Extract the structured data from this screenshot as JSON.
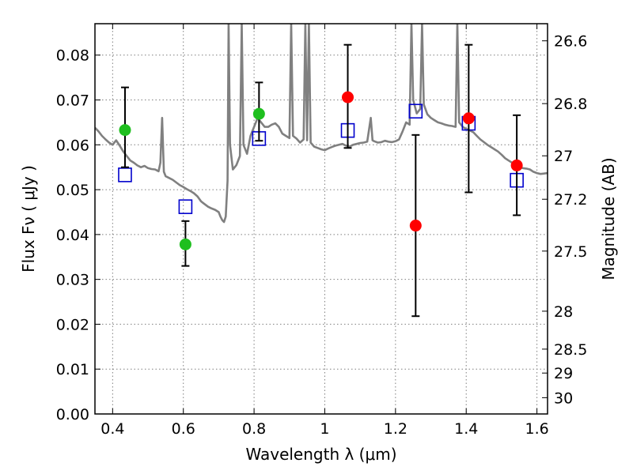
{
  "chart_data": {
    "type": "scatter",
    "xlabel": "Wavelength  λ (μm)",
    "ylabel": "Flux  Fν  ( μJy )",
    "y2label": "Magnitude (AB)",
    "xlim": [
      0.35,
      1.63
    ],
    "ylim": [
      0.0,
      0.087
    ],
    "grid": true,
    "x_ticks": [
      0.4,
      0.6,
      0.8,
      1.0,
      1.2,
      1.4,
      1.6
    ],
    "x_tick_labels": [
      "0.4",
      "0.6",
      "0.8",
      "1",
      "1.2",
      "1.4",
      "1.6"
    ],
    "y_ticks": [
      0.0,
      0.01,
      0.02,
      0.03,
      0.04,
      0.05,
      0.06,
      0.07,
      0.08
    ],
    "y_tick_labels": [
      "0.00",
      "0.01",
      "0.02",
      "0.03",
      "0.04",
      "0.05",
      "0.06",
      "0.07",
      "0.08"
    ],
    "y2_ticks": [
      {
        "label": "26.6",
        "mag": 26.6
      },
      {
        "label": "26.8",
        "mag": 26.8
      },
      {
        "label": "27",
        "mag": 27.0
      },
      {
        "label": "27.2",
        "mag": 27.2
      },
      {
        "label": "27.5",
        "mag": 27.5
      },
      {
        "label": "28",
        "mag": 28.0
      },
      {
        "label": "28.5",
        "mag": 28.5
      },
      {
        "label": "29",
        "mag": 29.0
      },
      {
        "label": "30",
        "mag": 30.0
      }
    ],
    "colors": {
      "green": "#1fbf1f",
      "red": "#ff0000",
      "model": "#808080",
      "open_square": "#0000cc",
      "errorbar": "#000000",
      "grid": "#7f7f7f"
    },
    "series": [
      {
        "marker": "filled-circle",
        "color": "#1fbf1f",
        "points": [
          {
            "x": 0.435,
            "y": 0.0633,
            "yerr_low": 0.055,
            "yerr_high": 0.0728
          },
          {
            "x": 0.606,
            "y": 0.0378,
            "yerr_low": 0.033,
            "yerr_high": 0.043
          },
          {
            "x": 0.814,
            "y": 0.0669,
            "yerr_low": 0.0609,
            "yerr_high": 0.0739
          }
        ]
      },
      {
        "marker": "filled-circle",
        "color": "#ff0000",
        "points": [
          {
            "x": 1.065,
            "y": 0.0706,
            "yerr_low": 0.0593,
            "yerr_high": 0.0823
          },
          {
            "x": 1.257,
            "y": 0.042,
            "yerr_low": 0.0218,
            "yerr_high": 0.0622
          },
          {
            "x": 1.407,
            "y": 0.0659,
            "yerr_low": 0.0494,
            "yerr_high": 0.0823
          },
          {
            "x": 1.543,
            "y": 0.0554,
            "yerr_low": 0.0443,
            "yerr_high": 0.0666
          }
        ]
      },
      {
        "marker": "open-square",
        "color": "#0000cc",
        "points": [
          {
            "x": 0.435,
            "y": 0.0533
          },
          {
            "x": 0.606,
            "y": 0.0462
          },
          {
            "x": 0.814,
            "y": 0.0614
          },
          {
            "x": 1.065,
            "y": 0.0632
          },
          {
            "x": 1.257,
            "y": 0.0675
          },
          {
            "x": 1.407,
            "y": 0.0648
          },
          {
            "x": 1.543,
            "y": 0.0521
          }
        ]
      },
      {
        "marker": "line",
        "color": "#808080",
        "points": [
          [
            0.35,
            0.0638
          ],
          [
            0.36,
            0.063
          ],
          [
            0.37,
            0.062
          ],
          [
            0.38,
            0.0612
          ],
          [
            0.39,
            0.0605
          ],
          [
            0.4,
            0.06
          ],
          [
            0.41,
            0.061
          ],
          [
            0.42,
            0.0598
          ],
          [
            0.43,
            0.0585
          ],
          [
            0.44,
            0.0575
          ],
          [
            0.45,
            0.0565
          ],
          [
            0.46,
            0.056
          ],
          [
            0.47,
            0.0554
          ],
          [
            0.48,
            0.055
          ],
          [
            0.49,
            0.0553
          ],
          [
            0.5,
            0.0548
          ],
          [
            0.51,
            0.0546
          ],
          [
            0.52,
            0.0545
          ],
          [
            0.53,
            0.0541
          ],
          [
            0.535,
            0.056
          ],
          [
            0.54,
            0.066
          ],
          [
            0.545,
            0.054
          ],
          [
            0.55,
            0.053
          ],
          [
            0.56,
            0.0526
          ],
          [
            0.57,
            0.0522
          ],
          [
            0.58,
            0.0516
          ],
          [
            0.59,
            0.051
          ],
          [
            0.6,
            0.0506
          ],
          [
            0.61,
            0.0501
          ],
          [
            0.62,
            0.0497
          ],
          [
            0.63,
            0.0492
          ],
          [
            0.64,
            0.0485
          ],
          [
            0.65,
            0.0474
          ],
          [
            0.66,
            0.0468
          ],
          [
            0.67,
            0.0462
          ],
          [
            0.68,
            0.0458
          ],
          [
            0.69,
            0.0455
          ],
          [
            0.7,
            0.045
          ],
          [
            0.705,
            0.044
          ],
          [
            0.71,
            0.0432
          ],
          [
            0.715,
            0.0428
          ],
          [
            0.72,
            0.044
          ],
          [
            0.725,
            0.052
          ],
          [
            0.728,
            0.087
          ],
          [
            0.732,
            0.06
          ],
          [
            0.74,
            0.0545
          ],
          [
            0.75,
            0.0555
          ],
          [
            0.76,
            0.0575
          ],
          [
            0.765,
            0.087
          ],
          [
            0.77,
            0.06
          ],
          [
            0.78,
            0.058
          ],
          [
            0.79,
            0.062
          ],
          [
            0.8,
            0.064
          ],
          [
            0.81,
            0.066
          ],
          [
            0.82,
            0.065
          ],
          [
            0.83,
            0.064
          ],
          [
            0.84,
            0.064
          ],
          [
            0.85,
            0.0645
          ],
          [
            0.86,
            0.0648
          ],
          [
            0.87,
            0.064
          ],
          [
            0.88,
            0.0625
          ],
          [
            0.89,
            0.062
          ],
          [
            0.9,
            0.0615
          ],
          [
            0.905,
            0.087
          ],
          [
            0.91,
            0.062
          ],
          [
            0.92,
            0.0614
          ],
          [
            0.93,
            0.0605
          ],
          [
            0.94,
            0.0612
          ],
          [
            0.945,
            0.087
          ],
          [
            0.95,
            0.061
          ],
          [
            0.955,
            0.087
          ],
          [
            0.96,
            0.0605
          ],
          [
            0.97,
            0.0596
          ],
          [
            0.98,
            0.0593
          ],
          [
            0.99,
            0.059
          ],
          [
            1.0,
            0.0588
          ],
          [
            1.01,
            0.0592
          ],
          [
            1.02,
            0.0595
          ],
          [
            1.03,
            0.0598
          ],
          [
            1.04,
            0.06
          ],
          [
            1.05,
            0.0602
          ],
          [
            1.06,
            0.0598
          ],
          [
            1.07,
            0.0596
          ],
          [
            1.08,
            0.06
          ],
          [
            1.09,
            0.0602
          ],
          [
            1.1,
            0.0604
          ],
          [
            1.11,
            0.0605
          ],
          [
            1.12,
            0.0607
          ],
          [
            1.13,
            0.066
          ],
          [
            1.135,
            0.061
          ],
          [
            1.14,
            0.0608
          ],
          [
            1.15,
            0.0605
          ],
          [
            1.16,
            0.0606
          ],
          [
            1.17,
            0.0609
          ],
          [
            1.18,
            0.0607
          ],
          [
            1.19,
            0.0606
          ],
          [
            1.2,
            0.0608
          ],
          [
            1.21,
            0.0612
          ],
          [
            1.22,
            0.063
          ],
          [
            1.23,
            0.065
          ],
          [
            1.24,
            0.0645
          ],
          [
            1.245,
            0.087
          ],
          [
            1.25,
            0.07
          ],
          [
            1.26,
            0.067
          ],
          [
            1.27,
            0.068
          ],
          [
            1.275,
            0.087
          ],
          [
            1.28,
            0.069
          ],
          [
            1.29,
            0.0668
          ],
          [
            1.3,
            0.066
          ],
          [
            1.31,
            0.0655
          ],
          [
            1.32,
            0.065
          ],
          [
            1.33,
            0.0648
          ],
          [
            1.34,
            0.0645
          ],
          [
            1.35,
            0.0643
          ],
          [
            1.36,
            0.0642
          ],
          [
            1.37,
            0.064
          ],
          [
            1.375,
            0.087
          ],
          [
            1.38,
            0.065
          ],
          [
            1.39,
            0.064
          ],
          [
            1.4,
            0.0635
          ],
          [
            1.41,
            0.0632
          ],
          [
            1.42,
            0.0628
          ],
          [
            1.43,
            0.062
          ],
          [
            1.44,
            0.0612
          ],
          [
            1.45,
            0.0606
          ],
          [
            1.46,
            0.06
          ],
          [
            1.47,
            0.0595
          ],
          [
            1.48,
            0.059
          ],
          [
            1.49,
            0.0585
          ],
          [
            1.5,
            0.0578
          ],
          [
            1.51,
            0.057
          ],
          [
            1.52,
            0.0565
          ],
          [
            1.53,
            0.056
          ],
          [
            1.54,
            0.0555
          ],
          [
            1.55,
            0.055
          ],
          [
            1.56,
            0.0548
          ],
          [
            1.57,
            0.0547
          ],
          [
            1.58,
            0.0545
          ],
          [
            1.59,
            0.054
          ],
          [
            1.6,
            0.0537
          ],
          [
            1.61,
            0.0535
          ],
          [
            1.62,
            0.0536
          ],
          [
            1.63,
            0.0537
          ]
        ]
      }
    ]
  }
}
